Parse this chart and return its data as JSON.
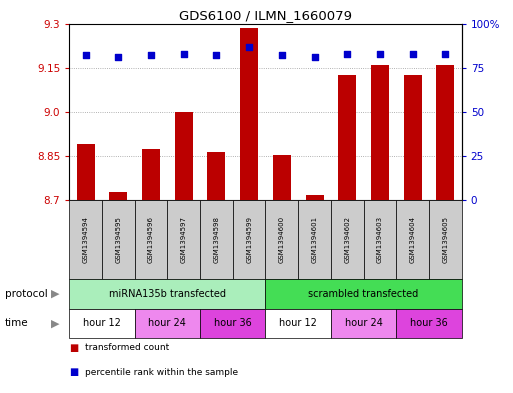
{
  "title": "GDS6100 / ILMN_1660079",
  "samples": [
    "GSM1394594",
    "GSM1394595",
    "GSM1394596",
    "GSM1394597",
    "GSM1394598",
    "GSM1394599",
    "GSM1394600",
    "GSM1394601",
    "GSM1394602",
    "GSM1394603",
    "GSM1394604",
    "GSM1394605"
  ],
  "bar_values": [
    8.89,
    8.73,
    8.875,
    9.0,
    8.865,
    9.285,
    8.855,
    8.72,
    9.125,
    9.16,
    9.125,
    9.16
  ],
  "percentile_values": [
    82,
    81,
    82,
    83,
    82,
    87,
    82,
    81,
    83,
    83,
    83,
    83
  ],
  "ylim_left": [
    8.7,
    9.3
  ],
  "yticks_left": [
    8.7,
    8.85,
    9.0,
    9.15,
    9.3
  ],
  "yticks_right": [
    0,
    25,
    50,
    75,
    100
  ],
  "bar_color": "#bb0000",
  "dot_color": "#0000cc",
  "bar_width": 0.55,
  "protocol_groups": [
    {
      "label": "miRNA135b transfected",
      "start": 0,
      "end": 6,
      "color": "#aaeebb"
    },
    {
      "label": "scrambled transfected",
      "start": 6,
      "end": 12,
      "color": "#44dd55"
    }
  ],
  "time_groups": [
    {
      "label": "hour 12",
      "start": 0,
      "end": 2,
      "color": "#ffffff"
    },
    {
      "label": "hour 24",
      "start": 2,
      "end": 4,
      "color": "#ee88ee"
    },
    {
      "label": "hour 36",
      "start": 4,
      "end": 6,
      "color": "#dd44dd"
    },
    {
      "label": "hour 12",
      "start": 6,
      "end": 8,
      "color": "#ffffff"
    },
    {
      "label": "hour 24",
      "start": 8,
      "end": 10,
      "color": "#ee88ee"
    },
    {
      "label": "hour 36",
      "start": 10,
      "end": 12,
      "color": "#dd44dd"
    }
  ],
  "legend_items": [
    {
      "label": "transformed count",
      "color": "#bb0000"
    },
    {
      "label": "percentile rank within the sample",
      "color": "#0000cc"
    }
  ],
  "grid_color": "#999999",
  "left_tick_color": "#cc0000",
  "right_tick_color": "#0000cc",
  "sample_box_color": "#cccccc",
  "protocol_label": "protocol",
  "time_label": "time",
  "bg_color": "#ffffff"
}
